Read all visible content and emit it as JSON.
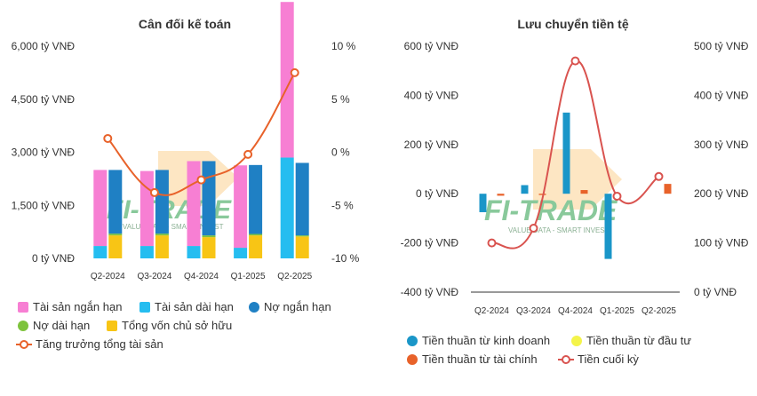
{
  "colors": {
    "tai_san_ngan_han": "#f77fd3",
    "tai_san_dai_han": "#25bdf0",
    "no_ngan_han": "#1f80c4",
    "no_dai_han": "#7ec33d",
    "von_chu_so_huu": "#f8c515",
    "growth_line": "#e8622a",
    "kinh_doanh": "#1a96c8",
    "dau_tu": "#f4f44a",
    "tai_chinh": "#e8622a",
    "cuoi_ky": "#d9534f"
  },
  "watermark": {
    "logo_text": "FI-TRADE",
    "tagline": "VALUE DATA - SMART INVEST"
  },
  "chart_data": [
    {
      "type": "bar",
      "title": "Cân đối kế toán",
      "categories": [
        "Q2-2024",
        "Q3-2024",
        "Q4-2024",
        "Q1-2025",
        "Q2-2025"
      ],
      "y_ticks": [
        "6,000 tỷ VNĐ",
        "4,500 tỷ VNĐ",
        "3,000 tỷ VNĐ",
        "1,500 tỷ VNĐ",
        "0 tỷ VNĐ"
      ],
      "y2_ticks": [
        "10 %",
        "5 %",
        "0 %",
        "-5 %",
        "-10 %"
      ],
      "ylim": [
        0,
        6000
      ],
      "y2lim": [
        -10,
        10
      ],
      "series": [
        {
          "name": "Tài sản ngắn hạn",
          "stack": "assets",
          "values": [
            2150,
            2120,
            2400,
            2330,
            4400
          ]
        },
        {
          "name": "Tài sản dài hạn",
          "stack": "assets",
          "values": [
            350,
            350,
            350,
            300,
            2850
          ]
        },
        {
          "name": "Nợ ngắn hạn",
          "stack": "capital",
          "values": [
            1800,
            1800,
            2100,
            1950,
            2050
          ]
        },
        {
          "name": "Nợ dài hạn",
          "stack": "capital",
          "values": [
            50,
            50,
            50,
            40,
            30
          ]
        },
        {
          "name": "Tổng vốn chủ sở hữu",
          "stack": "capital",
          "values": [
            650,
            650,
            600,
            650,
            620
          ]
        },
        {
          "name": "Tăng trưởng tổng tài sản",
          "kind": "line",
          "axis": "y2",
          "values": [
            1.3,
            -3.8,
            -2.6,
            -0.2,
            7.5
          ]
        }
      ],
      "legend": [
        [
          {
            "label": "Tài sản ngắn hạn",
            "color_key": "tai_san_ngan_han",
            "kind": "square"
          },
          {
            "label": "Tài sản dài hạn",
            "color_key": "tai_san_dai_han",
            "kind": "square"
          },
          {
            "label": "Nợ ngắn hạn",
            "color_key": "no_ngan_han",
            "kind": "circle"
          }
        ],
        [
          {
            "label": "Nợ dài hạn",
            "color_key": "no_dai_han",
            "kind": "circle"
          },
          {
            "label": "Tổng vốn chủ sở hữu",
            "color_key": "von_chu_so_huu",
            "kind": "square"
          }
        ],
        [
          {
            "label": "Tăng trưởng tổng tài sản",
            "color_key": "growth_line",
            "kind": "line"
          }
        ]
      ],
      "legend_position": "bottom-left"
    },
    {
      "type": "bar",
      "title": "Lưu chuyển tiền tệ",
      "categories": [
        "Q2-2024",
        "Q3-2024",
        "Q4-2024",
        "Q1-2025",
        "Q2-2025"
      ],
      "y_ticks": [
        "600 tỷ VNĐ",
        "400 tỷ VNĐ",
        "200 tỷ VNĐ",
        "0 tỷ VNĐ",
        "-200 tỷ VNĐ",
        "-400 tỷ VNĐ"
      ],
      "y2_ticks": [
        "500 tỷ VNĐ",
        "400 tỷ VNĐ",
        "300 tỷ VNĐ",
        "200 tỷ VNĐ",
        "100 tỷ VNĐ",
        "0 tỷ VNĐ"
      ],
      "ylim": [
        -400,
        600
      ],
      "y2lim": [
        0,
        500
      ],
      "series": [
        {
          "name": "Tiền thuần từ kinh doanh",
          "values": [
            -75,
            35,
            330,
            -265,
            0
          ]
        },
        {
          "name": "Tiền thuần từ đầu tư",
          "values": [
            0,
            0,
            0,
            0,
            0
          ]
        },
        {
          "name": "Tiền thuần từ tài chính",
          "values": [
            -8,
            -5,
            15,
            0,
            40
          ]
        },
        {
          "name": "Tiền cuối kỳ",
          "kind": "line",
          "axis": "y2",
          "values": [
            100,
            130,
            470,
            195,
            235
          ]
        }
      ],
      "legend": [
        [
          {
            "label": "Tiền thuần từ kinh doanh",
            "color_key": "kinh_doanh",
            "kind": "circle"
          },
          {
            "label": "Tiền thuần từ đầu tư",
            "color_key": "dau_tu",
            "kind": "circle"
          }
        ],
        [
          {
            "label": "Tiền thuần từ tài chính",
            "color_key": "tai_chinh",
            "kind": "circle"
          },
          {
            "label": "Tiền cuối kỳ",
            "color_key": "cuoi_ky",
            "kind": "line"
          }
        ]
      ],
      "legend_position": "bottom-left"
    }
  ]
}
